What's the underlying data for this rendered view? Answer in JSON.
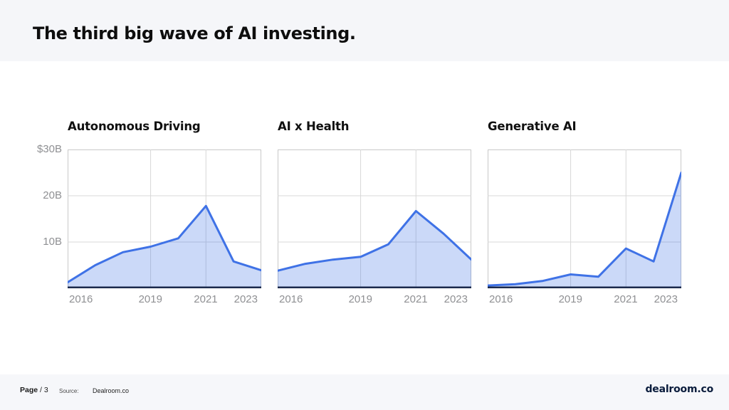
{
  "header": {
    "title": "The third big wave of AI investing."
  },
  "footer": {
    "page_label": "Page",
    "page_value": "/ 3",
    "source_label": "Source:",
    "source_value": "Dealroom.co",
    "brand": "dealroom.co"
  },
  "colors": {
    "accent_line": "#3f72e6",
    "area_fill": "rgba(63,114,230,0.27)",
    "baseline_navy": "#1c2b4d",
    "grid": "#d8d8d8",
    "plot_border": "#c9c9c9",
    "axis_text": "#8f9093",
    "band_bg": "#f5f6f9",
    "title_text": "#0e0e0e",
    "brand_navy": "#0a1c3c"
  },
  "chart_data": [
    {
      "type": "area",
      "title": "Autonomous Driving",
      "x": [
        2016,
        2017,
        2018,
        2019,
        2020,
        2021,
        2022,
        2023
      ],
      "values": [
        1.3,
        5.0,
        7.8,
        9.0,
        10.8,
        17.8,
        5.8,
        3.9
      ],
      "unit": "$B",
      "ylim": [
        0,
        30
      ],
      "xticks": [
        2016,
        2019,
        2021,
        2023
      ],
      "grid_x": [
        2019,
        2021
      ],
      "grid_y": [
        10,
        20
      ],
      "yticks": [
        {
          "value": 30,
          "label": "$30B"
        },
        {
          "value": 20,
          "label": "20B"
        },
        {
          "value": 10,
          "label": "10B"
        }
      ],
      "y_labels_visible": true,
      "legend": "none",
      "grid": "on"
    },
    {
      "type": "area",
      "title": "AI x Health",
      "x": [
        2016,
        2017,
        2018,
        2019,
        2020,
        2021,
        2022,
        2023
      ],
      "values": [
        3.8,
        5.3,
        6.2,
        6.8,
        9.5,
        16.7,
        11.8,
        6.2
      ],
      "unit": "$B",
      "ylim": [
        0,
        30
      ],
      "xticks": [
        2016,
        2019,
        2021,
        2023
      ],
      "grid_x": [
        2019,
        2021
      ],
      "grid_y": [
        10,
        20
      ],
      "yticks": [
        {
          "value": 30,
          "label": "$30B"
        },
        {
          "value": 20,
          "label": "20B"
        },
        {
          "value": 10,
          "label": "10B"
        }
      ],
      "y_labels_visible": false,
      "legend": "none",
      "grid": "on"
    },
    {
      "type": "area",
      "title": "Generative AI",
      "x": [
        2016,
        2017,
        2018,
        2019,
        2020,
        2021,
        2022,
        2023
      ],
      "values": [
        0.6,
        0.9,
        1.6,
        3.0,
        2.5,
        8.6,
        5.8,
        25.0
      ],
      "unit": "$B",
      "ylim": [
        0,
        30
      ],
      "xticks": [
        2016,
        2019,
        2021,
        2023
      ],
      "grid_x": [
        2019,
        2021
      ],
      "grid_y": [
        10,
        20
      ],
      "yticks": [
        {
          "value": 30,
          "label": "$30B"
        },
        {
          "value": 20,
          "label": "20B"
        },
        {
          "value": 10,
          "label": "10B"
        }
      ],
      "y_labels_visible": false,
      "legend": "none",
      "grid": "on"
    }
  ]
}
